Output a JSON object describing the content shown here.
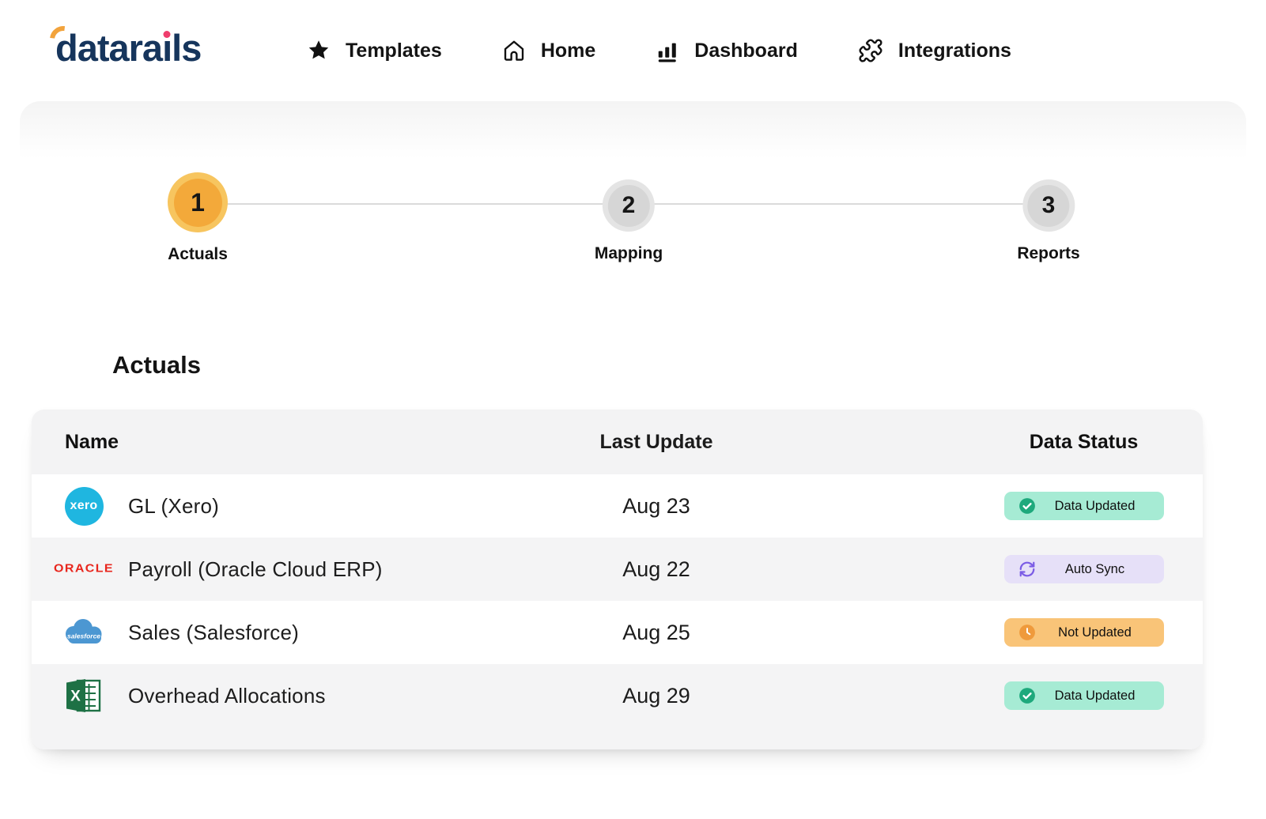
{
  "header": {
    "logo_text": "datarails",
    "nav_items": [
      {
        "label": "Templates",
        "icon": "star-icon"
      },
      {
        "label": "Home",
        "icon": "home-icon"
      },
      {
        "label": "Dashboard",
        "icon": "dashboard-icon"
      },
      {
        "label": "Integrations",
        "icon": "integrations-icon"
      }
    ]
  },
  "stepper": {
    "steps": [
      {
        "number": "1",
        "label": "Actuals",
        "state": "active"
      },
      {
        "number": "2",
        "label": "Mapping",
        "state": "inactive"
      },
      {
        "number": "3",
        "label": "Reports",
        "state": "inactive"
      }
    ]
  },
  "section_title": "Actuals",
  "table": {
    "columns": [
      "Name",
      "Last Update",
      "Data Status"
    ],
    "rows": [
      {
        "name": "GL (Xero)",
        "source": "xero",
        "last_update": "Aug 23",
        "status_label": "Data Updated",
        "status_type": "updated"
      },
      {
        "name": "Payroll (Oracle Cloud ERP)",
        "source": "oracle",
        "last_update": "Aug 22",
        "status_label": "Auto Sync",
        "status_type": "sync"
      },
      {
        "name": "Sales (Salesforce)",
        "source": "salesforce",
        "last_update": "Aug 25",
        "status_label": "Not Updated",
        "status_type": "warning"
      },
      {
        "name": "Overhead Allocations",
        "source": "excel",
        "last_update": "Aug 29",
        "status_label": "Data Updated",
        "status_type": "updated"
      }
    ]
  },
  "logos": {
    "xero_text": "xero",
    "oracle_text": "ORACLE",
    "salesforce_text": "salesforce",
    "excel_letter": "X"
  },
  "colors": {
    "logo_navy": "#16355C",
    "accent_orange": "#F2A33C",
    "logo_dot_pink": "#EF3E6D",
    "step_active_outer": "#F7C55F",
    "step_active_inner": "#F3A93A",
    "status_updated_bg": "#A6EBD4",
    "status_updated_icon": "#1EA97C",
    "status_sync_bg": "#E6E0F8",
    "status_sync_icon": "#7B5CE5",
    "status_warning_bg": "#F9C478",
    "status_warning_icon": "#EF9A3C",
    "xero_blue": "#1FB6E0",
    "oracle_red": "#E8261D",
    "salesforce_blue": "#4C97D2",
    "excel_green": "#1E7145"
  }
}
